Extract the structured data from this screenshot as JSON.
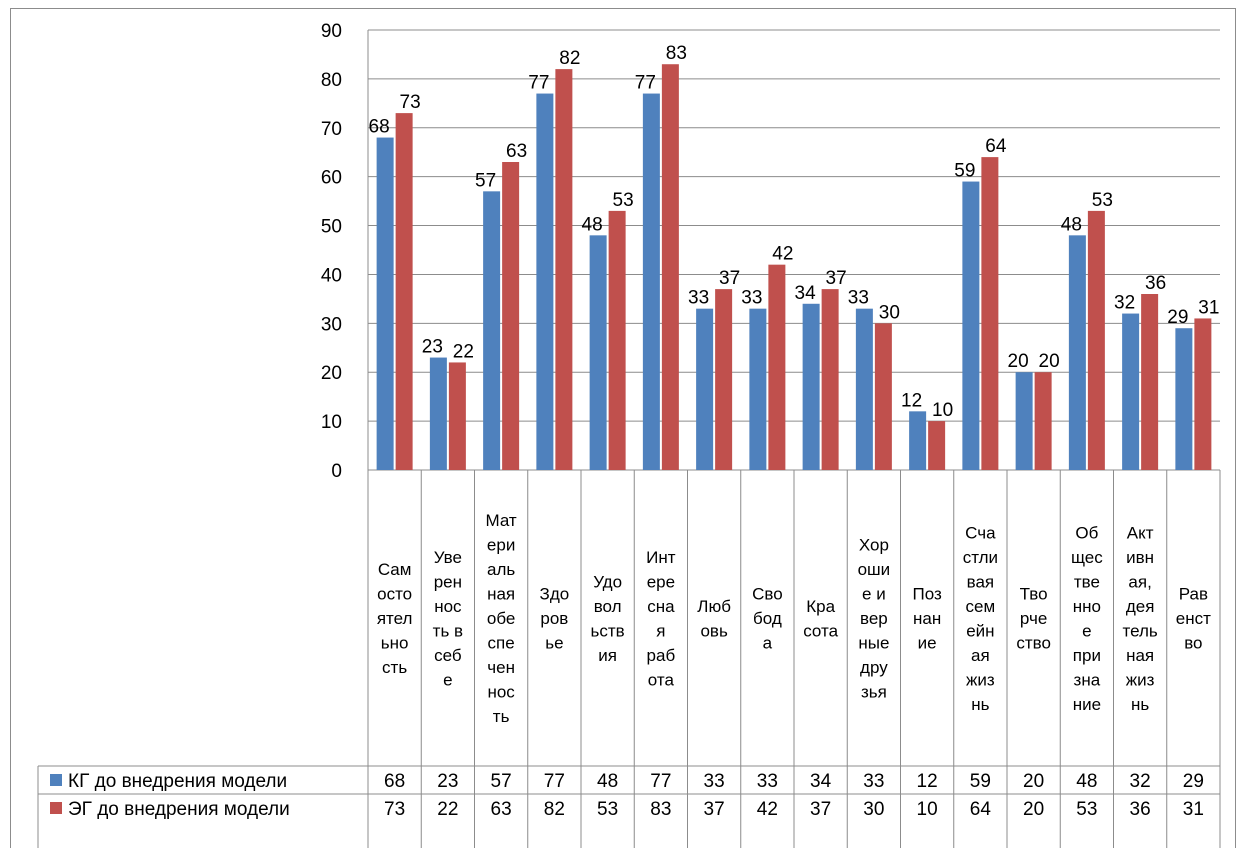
{
  "chart_data": {
    "type": "bar",
    "title": "",
    "xlabel": "",
    "ylabel": "",
    "ylim": [
      0,
      90
    ],
    "yticks": [
      0,
      10,
      20,
      30,
      40,
      50,
      60,
      70,
      80,
      90
    ],
    "grid": true,
    "legend": "data-table",
    "categories": [
      [
        "Сам",
        "осто",
        "ятел",
        "ьно",
        "сть"
      ],
      [
        "Уве",
        "рен",
        "нос",
        "ть в",
        "себ",
        "е"
      ],
      [
        "Мат",
        "ери",
        "аль",
        "ная",
        "обе",
        "спе",
        "чен",
        "нос",
        "ть"
      ],
      [
        "Здо",
        "ров",
        "ье"
      ],
      [
        "Удо",
        "вол",
        "ьств",
        "ия"
      ],
      [
        "Инт",
        "ере",
        "сна",
        "я",
        "раб",
        "ота"
      ],
      [
        "Люб",
        "овь"
      ],
      [
        "Сво",
        "бод",
        "а"
      ],
      [
        "Кра",
        "сота"
      ],
      [
        "Хор",
        "оши",
        "е и",
        "вер",
        "ные",
        "дру",
        "зья"
      ],
      [
        "Поз",
        "нан",
        "ие"
      ],
      [
        "Сча",
        "стли",
        "вая",
        "сем",
        "ейн",
        "ая",
        "жиз",
        "нь"
      ],
      [
        "Тво",
        "рче",
        "ство"
      ],
      [
        "Об",
        "щес",
        "тве",
        "нно",
        "е",
        "при",
        "зна",
        "ние"
      ],
      [
        "Акт",
        "ивн",
        "ая,",
        "дея",
        "тель",
        "ная",
        "жиз",
        "нь"
      ],
      [
        "Рав",
        "енст",
        "во"
      ]
    ],
    "series": [
      {
        "name": "КГ до внедрения модели",
        "color": "#4f81bd",
        "values": [
          68,
          23,
          57,
          77,
          48,
          77,
          33,
          33,
          34,
          33,
          12,
          59,
          20,
          48,
          32,
          29
        ]
      },
      {
        "name": "ЭГ до  внедрения модели",
        "color": "#c0504d",
        "values": [
          73,
          22,
          63,
          82,
          53,
          83,
          37,
          42,
          37,
          30,
          10,
          64,
          20,
          53,
          36,
          31
        ]
      }
    ]
  }
}
